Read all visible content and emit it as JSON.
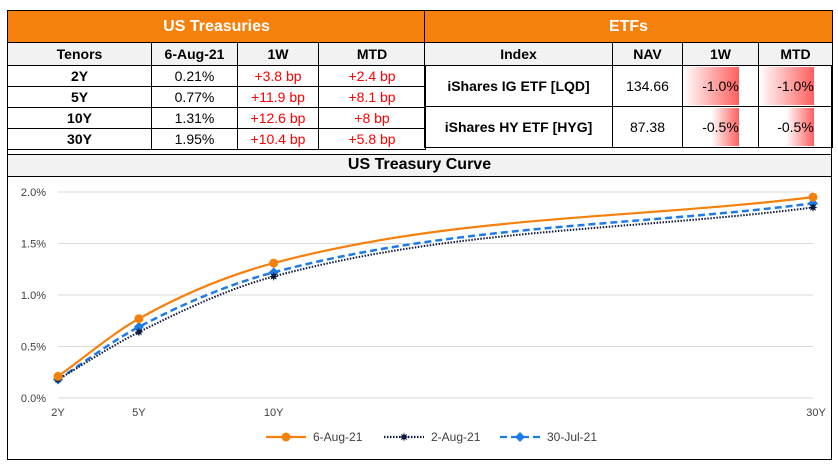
{
  "treasuries": {
    "title": "US Treasuries",
    "headers": [
      "Tenors",
      "6-Aug-21",
      "1W",
      "MTD"
    ],
    "rows": [
      {
        "tenor": "2Y",
        "yield": "0.21%",
        "w1": "+3.8 bp",
        "mtd": "+2.4 bp"
      },
      {
        "tenor": "5Y",
        "yield": "0.77%",
        "w1": "+11.9 bp",
        "mtd": "+8.1 bp"
      },
      {
        "tenor": "10Y",
        "yield": "1.31%",
        "w1": "+12.6 bp",
        "mtd": "+8 bp"
      },
      {
        "tenor": "30Y",
        "yield": "1.95%",
        "w1": "+10.4 bp",
        "mtd": "+5.8 bp"
      }
    ]
  },
  "etfs": {
    "title": "ETFs",
    "headers": [
      "Index",
      "NAV",
      "1W",
      "MTD"
    ],
    "rows": [
      {
        "index": "iShares IG ETF [LQD]",
        "nav": "134.66",
        "w1": "-1.0%",
        "w1_value": -1.0,
        "mtd": "-1.0%",
        "mtd_value": -1.0
      },
      {
        "index": "iShares HY ETF [HYG]",
        "nav": "87.38",
        "w1": "-0.5%",
        "w1_value": -0.5,
        "mtd": "-0.5%",
        "mtd_value": -0.5
      }
    ],
    "databar_color": "#ff5f5f"
  },
  "colors": {
    "header_orange": "#f5800b",
    "header_gray": "#f2f2f2",
    "positive_red": "#ff0000"
  },
  "chart_data": {
    "type": "line",
    "title": "US Treasury Curve",
    "xlabel": "",
    "ylabel": "",
    "x": [
      2,
      5,
      10,
      30
    ],
    "x_tick_labels": [
      "2Y",
      "5Y",
      "10Y",
      "30Y"
    ],
    "xlim": [
      2,
      30
    ],
    "ylim": [
      0,
      2.0
    ],
    "y_ticks": [
      0,
      0.5,
      1.0,
      1.5,
      2.0
    ],
    "y_tick_labels": [
      "0.0%",
      "0.5%",
      "1.0%",
      "1.5%",
      "2.0%"
    ],
    "grid": true,
    "legend_position": "bottom",
    "series": [
      {
        "name": "6-Aug-21",
        "values": [
          0.21,
          0.77,
          1.31,
          1.95
        ],
        "color": "#f5800b",
        "style": "solid",
        "marker": "circle"
      },
      {
        "name": "2-Aug-21",
        "values": [
          0.18,
          0.64,
          1.18,
          1.85
        ],
        "color": "#0d1b3e",
        "style": "dotted",
        "marker": "star"
      },
      {
        "name": "30-Jul-21",
        "values": [
          0.18,
          0.69,
          1.22,
          1.89
        ],
        "color": "#1e7be6",
        "style": "dashed",
        "marker": "diamond"
      }
    ]
  }
}
